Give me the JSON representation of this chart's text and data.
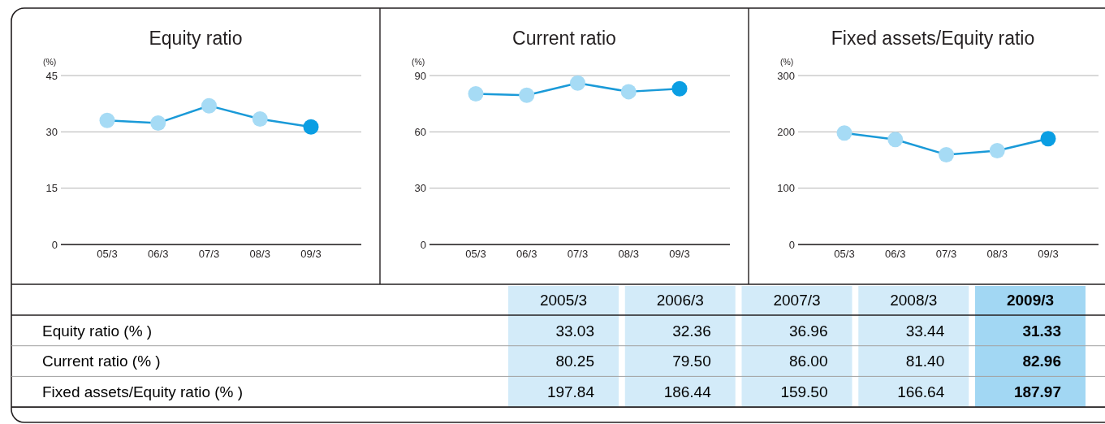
{
  "chart_data": [
    {
      "type": "line",
      "title": "Equity ratio",
      "ylabel": "(%)",
      "categories": [
        "05/3",
        "06/3",
        "07/3",
        "08/3",
        "09/3"
      ],
      "values": [
        33.03,
        32.36,
        36.96,
        33.44,
        31.33
      ],
      "color": "#1a9ad8",
      "colors": [
        "#a6dbf5",
        "#a6dbf5",
        "#a6dbf5",
        "#a6dbf5",
        "#0a9ee3"
      ],
      "ylim": [
        0,
        45
      ],
      "yticks": [
        0,
        15,
        30,
        45
      ],
      "grid": "y",
      "marker": "circle",
      "line_style": "solid"
    },
    {
      "type": "line",
      "title": "Current ratio",
      "ylabel": "(%)",
      "categories": [
        "05/3",
        "06/3",
        "07/3",
        "08/3",
        "09/3"
      ],
      "values": [
        80.25,
        79.5,
        86.0,
        81.4,
        82.96
      ],
      "color": "#1a9ad8",
      "colors": [
        "#a6dbf5",
        "#a6dbf5",
        "#a6dbf5",
        "#a6dbf5",
        "#0a9ee3"
      ],
      "ylim": [
        0,
        90
      ],
      "yticks": [
        0,
        30,
        60,
        90
      ],
      "grid": "y",
      "marker": "circle",
      "line_style": "solid"
    },
    {
      "type": "line",
      "title": "Fixed assets/Equity ratio",
      "ylabel": "(%)",
      "categories": [
        "05/3",
        "06/3",
        "07/3",
        "08/3",
        "09/3"
      ],
      "values": [
        197.84,
        186.44,
        159.5,
        166.64,
        187.97
      ],
      "color": "#1a9ad8",
      "colors": [
        "#a6dbf5",
        "#a6dbf5",
        "#a6dbf5",
        "#a6dbf5",
        "#0a9ee3"
      ],
      "ylim": [
        0,
        300
      ],
      "yticks": [
        0,
        100,
        200,
        300
      ],
      "grid": "y",
      "marker": "circle",
      "line_style": "solid"
    },
    {
      "type": "other",
      "categories": [
        "2005/3",
        "2006/3",
        "2007/3",
        "2008/3",
        "2009/3"
      ],
      "colors": [
        "#d3ebf9",
        "#d3ebf9",
        "#d3ebf9",
        "#d3ebf9",
        "#a2d7f3"
      ],
      "annotations": [
        "Equity ratio (% )",
        "Current ratio (% )",
        "Fixed assets/Equity ratio (% )"
      ],
      "series": [
        {
          "values": [
            33.03,
            32.36,
            36.96,
            33.44,
            31.33
          ],
          "value_labels": [
            "33.03",
            "32.36",
            "36.96",
            "33.44",
            "31.33"
          ],
          "colors": [
            "#d3ebf9",
            "#d3ebf9",
            "#d3ebf9",
            "#d3ebf9",
            "#a2d7f3"
          ]
        },
        {
          "values": [
            80.25,
            79.5,
            86.0,
            81.4,
            82.96
          ],
          "value_labels": [
            "80.25",
            "79.50",
            "86.00",
            "81.40",
            "82.96"
          ],
          "colors": [
            "#d3ebf9",
            "#d3ebf9",
            "#d3ebf9",
            "#d3ebf9",
            "#a2d7f3"
          ]
        },
        {
          "values": [
            197.84,
            186.44,
            159.5,
            166.64,
            187.97
          ],
          "value_labels": [
            "197.84",
            "186.44",
            "159.50",
            "166.64",
            "187.97"
          ],
          "colors": [
            "#d3ebf9",
            "#d3ebf9",
            "#d3ebf9",
            "#d3ebf9",
            "#a2d7f3"
          ]
        }
      ]
    }
  ]
}
